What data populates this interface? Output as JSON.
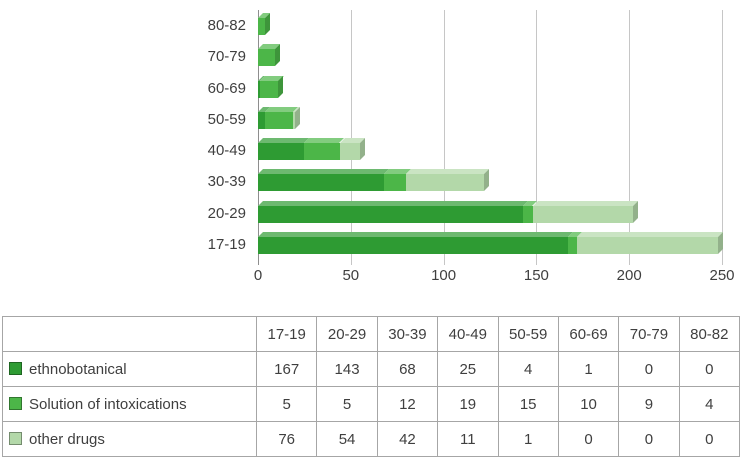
{
  "chart_data": {
    "type": "bar",
    "orientation": "horizontal",
    "stacked": true,
    "title": "",
    "categories": [
      "17-19",
      "20-29",
      "30-39",
      "40-49",
      "50-59",
      "60-69",
      "70-79",
      "80-82"
    ],
    "series": [
      {
        "name": "ethnobotanical",
        "color": "#2e9b33",
        "values": [
          167,
          143,
          68,
          25,
          4,
          1,
          0,
          0
        ]
      },
      {
        "name": "Solution of intoxications",
        "color": "#4cb648",
        "values": [
          5,
          5,
          12,
          19,
          15,
          10,
          9,
          4
        ]
      },
      {
        "name": "other drugs",
        "color": "#b3d8a9",
        "values": [
          76,
          54,
          42,
          11,
          1,
          0,
          0,
          0
        ]
      }
    ],
    "xlim": [
      0,
      250
    ],
    "x_ticks": [
      0,
      50,
      100,
      150,
      200,
      250
    ],
    "grid": "vertical-gridlines",
    "legend_position": "table-rows-left"
  },
  "table": {
    "corner_label": "",
    "column_headers": [
      "17-19",
      "20-29",
      "30-39",
      "40-49",
      "50-59",
      "60-69",
      "70-79",
      "80-82"
    ],
    "row_labels": [
      "ethnobotanical",
      "Solution of intoxications",
      "other drugs"
    ]
  },
  "style": {
    "gridline_color": "#c6c6c6",
    "axis_color": "#8e8e8e",
    "table_border_color": "#a6a6a6",
    "text_color": "#3f3f3f",
    "background": "#ffffff"
  }
}
